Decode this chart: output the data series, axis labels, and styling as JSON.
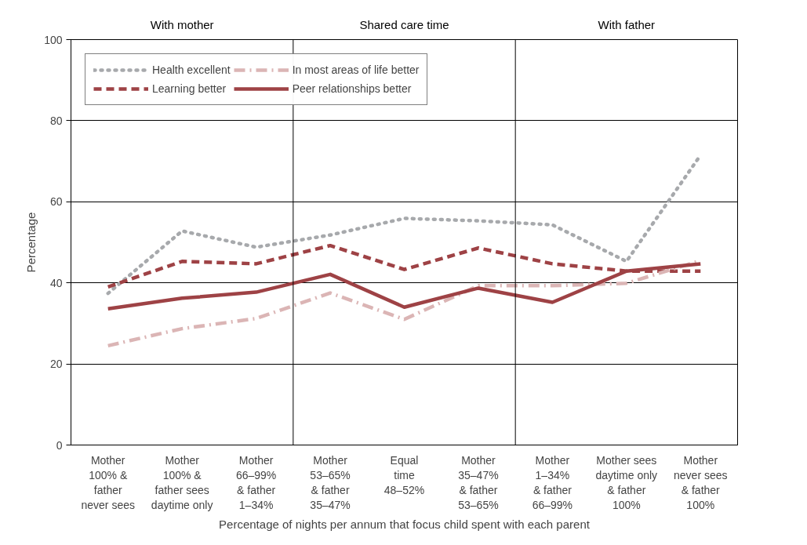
{
  "chart_data": {
    "type": "line",
    "xlabel": "Percentage of nights per annum that focus child spent with each parent",
    "ylabel": "Percentage",
    "categories": [
      "Mother\n100% &\nfather\nnever sees",
      "Mother\n100% &\nfather sees\ndaytime only",
      "Mother\n66–99%\n& father\n1–34%",
      "Mother\n53–65%\n& father\n35–47%",
      "Equal\ntime\n48–52%",
      "Mother\n35–47%\n& father\n53–65%",
      "Mother\n1–34%\n& father\n66–99%",
      "Mother sees\ndaytime only\n& father\n100%",
      "Mother\nnever sees\n& father\n100%"
    ],
    "series": [
      {
        "name": "Health excellent",
        "color": "#a7a9ac",
        "line_style": "dotted",
        "values": [
          37.4,
          52.8,
          48.8,
          51.8,
          55.9,
          55.3,
          54.3,
          45.3,
          71.5
        ]
      },
      {
        "name": "Learning better",
        "color": "#9e4245",
        "line_style": "dashed",
        "values": [
          39,
          45.3,
          44.7,
          49.2,
          43.3,
          48.6,
          44.7,
          42.9,
          42.9
        ]
      },
      {
        "name": "In most areas of life better",
        "color": "#dbb5b5",
        "line_style": "dashdot",
        "values": [
          24.5,
          28.7,
          31.2,
          37.5,
          31,
          39.3,
          39.3,
          39.9,
          45.5
        ]
      },
      {
        "name": "Peer relationships better",
        "color": "#9e4245",
        "line_style": "solid",
        "values": [
          33.6,
          36.2,
          37.7,
          42.1,
          34,
          38.7,
          35.2,
          42.9,
          44.7
        ]
      }
    ],
    "annotations": [
      "With mother",
      "Shared care time",
      "With father"
    ],
    "ylim": [
      0,
      100
    ],
    "yticks": [
      0,
      20,
      40,
      60,
      80,
      100
    ],
    "grid": "y",
    "legend": "top left",
    "marker": "none"
  }
}
